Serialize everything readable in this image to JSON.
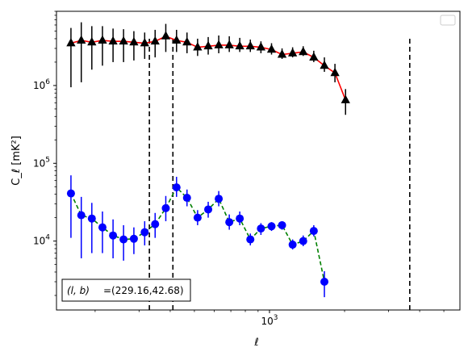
{
  "chart_data": {
    "type": "scatter",
    "title": "",
    "xlabel": "ℓ",
    "ylabel": "C_ℓ [mK²]",
    "xscale": "log",
    "yscale": "log",
    "xlim": [
      140,
      5800
    ],
    "ylim": [
      1300,
      9000000
    ],
    "xticks": [
      {
        "value": 1000,
        "label": "10^3"
      }
    ],
    "yticks": [
      {
        "value": 10000,
        "label": "10^4"
      },
      {
        "value": 100000,
        "label": "10^5"
      },
      {
        "value": 1000000,
        "label": "10^6"
      }
    ],
    "grid": false,
    "legend": {
      "location": "upper right",
      "entries": []
    },
    "vlines": [
      {
        "x": 330,
        "y_range": [
          1300,
          4000000
        ],
        "style": "dashed",
        "color": "#000000"
      },
      {
        "x": 410,
        "y_range": [
          1300,
          4000000
        ],
        "style": "dashed",
        "color": "#000000"
      },
      {
        "x": 3650,
        "y_range": [
          1300,
          4000000
        ],
        "style": "dashed",
        "color": "#000000"
      }
    ],
    "annotation": {
      "prefix": "(l, b)",
      "value": "=(229.16,42.68)",
      "location": "lower left"
    },
    "series": [
      {
        "marker": "triangle",
        "color": "#000000",
        "line_color": "#ff0000",
        "line_style": "solid",
        "points": [
          {
            "x": 160,
            "y": 3500000,
            "lo": 950000,
            "hi": 5500000
          },
          {
            "x": 176,
            "y": 3800000,
            "lo": 1100000,
            "hi": 6500000
          },
          {
            "x": 194,
            "y": 3600000,
            "lo": 1600000,
            "hi": 5800000
          },
          {
            "x": 214,
            "y": 3800000,
            "lo": 1800000,
            "hi": 5800000
          },
          {
            "x": 236,
            "y": 3700000,
            "lo": 2000000,
            "hi": 5400000
          },
          {
            "x": 260,
            "y": 3700000,
            "lo": 2000000,
            "hi": 5300000
          },
          {
            "x": 286,
            "y": 3600000,
            "lo": 2100000,
            "hi": 5000000
          },
          {
            "x": 316,
            "y": 3500000,
            "lo": 2200000,
            "hi": 4800000
          },
          {
            "x": 348,
            "y": 3700000,
            "lo": 2300000,
            "hi": 5200000
          },
          {
            "x": 384,
            "y": 4300000,
            "lo": 2700000,
            "hi": 6200000
          },
          {
            "x": 424,
            "y": 3800000,
            "lo": 2700000,
            "hi": 5200000
          },
          {
            "x": 467,
            "y": 3600000,
            "lo": 2600000,
            "hi": 4800000
          },
          {
            "x": 515,
            "y": 3100000,
            "lo": 2400000,
            "hi": 4000000
          },
          {
            "x": 568,
            "y": 3200000,
            "lo": 2500000,
            "hi": 4200000
          },
          {
            "x": 626,
            "y": 3300000,
            "lo": 2600000,
            "hi": 4400000
          },
          {
            "x": 690,
            "y": 3300000,
            "lo": 2700000,
            "hi": 4300000
          },
          {
            "x": 760,
            "y": 3200000,
            "lo": 2700000,
            "hi": 4100000
          },
          {
            "x": 838,
            "y": 3200000,
            "lo": 2700000,
            "hi": 3900000
          },
          {
            "x": 924,
            "y": 3100000,
            "lo": 2600000,
            "hi": 3700000
          },
          {
            "x": 1019,
            "y": 2900000,
            "lo": 2500000,
            "hi": 3500000
          },
          {
            "x": 1123,
            "y": 2500000,
            "lo": 2200000,
            "hi": 3000000
          },
          {
            "x": 1238,
            "y": 2600000,
            "lo": 2300000,
            "hi": 3100000
          },
          {
            "x": 1365,
            "y": 2700000,
            "lo": 2400000,
            "hi": 3200000
          },
          {
            "x": 1505,
            "y": 2300000,
            "lo": 2000000,
            "hi": 2800000
          },
          {
            "x": 1660,
            "y": 1800000,
            "lo": 1500000,
            "hi": 2300000
          },
          {
            "x": 1830,
            "y": 1450000,
            "lo": 1100000,
            "hi": 1900000
          },
          {
            "x": 2018,
            "y": 650000,
            "lo": 420000,
            "hi": 900000
          }
        ]
      },
      {
        "marker": "circle",
        "color": "#0000ff",
        "line_color": "#008000",
        "line_style": "dashed",
        "points": [
          {
            "x": 160,
            "y": 41000,
            "lo": 11000,
            "hi": 70000
          },
          {
            "x": 176,
            "y": 21500,
            "lo": 6000,
            "hi": 37000
          },
          {
            "x": 194,
            "y": 19500,
            "lo": 7000,
            "hi": 31000
          },
          {
            "x": 214,
            "y": 15000,
            "lo": 7000,
            "hi": 24000
          },
          {
            "x": 236,
            "y": 11800,
            "lo": 6000,
            "hi": 19000
          },
          {
            "x": 260,
            "y": 10500,
            "lo": 5600,
            "hi": 16000
          },
          {
            "x": 286,
            "y": 10700,
            "lo": 6800,
            "hi": 15000
          },
          {
            "x": 316,
            "y": 13000,
            "lo": 8800,
            "hi": 18000
          },
          {
            "x": 348,
            "y": 16500,
            "lo": 11000,
            "hi": 23000
          },
          {
            "x": 384,
            "y": 26500,
            "lo": 18000,
            "hi": 38000
          },
          {
            "x": 424,
            "y": 49000,
            "lo": 37000,
            "hi": 67000
          },
          {
            "x": 467,
            "y": 36000,
            "lo": 28000,
            "hi": 46000
          },
          {
            "x": 515,
            "y": 20000,
            "lo": 16000,
            "hi": 25000
          },
          {
            "x": 568,
            "y": 25500,
            "lo": 20000,
            "hi": 32000
          },
          {
            "x": 626,
            "y": 35000,
            "lo": 28000,
            "hi": 44000
          },
          {
            "x": 690,
            "y": 17500,
            "lo": 14000,
            "hi": 22000
          },
          {
            "x": 760,
            "y": 19500,
            "lo": 16000,
            "hi": 24000
          },
          {
            "x": 838,
            "y": 10500,
            "lo": 8800,
            "hi": 12500
          },
          {
            "x": 924,
            "y": 14500,
            "lo": 12000,
            "hi": 17000
          },
          {
            "x": 1019,
            "y": 15500,
            "lo": 13500,
            "hi": 17500
          },
          {
            "x": 1123,
            "y": 16000,
            "lo": 14000,
            "hi": 18000
          },
          {
            "x": 1238,
            "y": 9000,
            "lo": 7800,
            "hi": 10500
          },
          {
            "x": 1365,
            "y": 10000,
            "lo": 8600,
            "hi": 11800
          },
          {
            "x": 1505,
            "y": 13500,
            "lo": 11500,
            "hi": 16000
          },
          {
            "x": 1660,
            "y": 3000,
            "lo": 1900,
            "hi": 4100
          }
        ]
      }
    ]
  }
}
